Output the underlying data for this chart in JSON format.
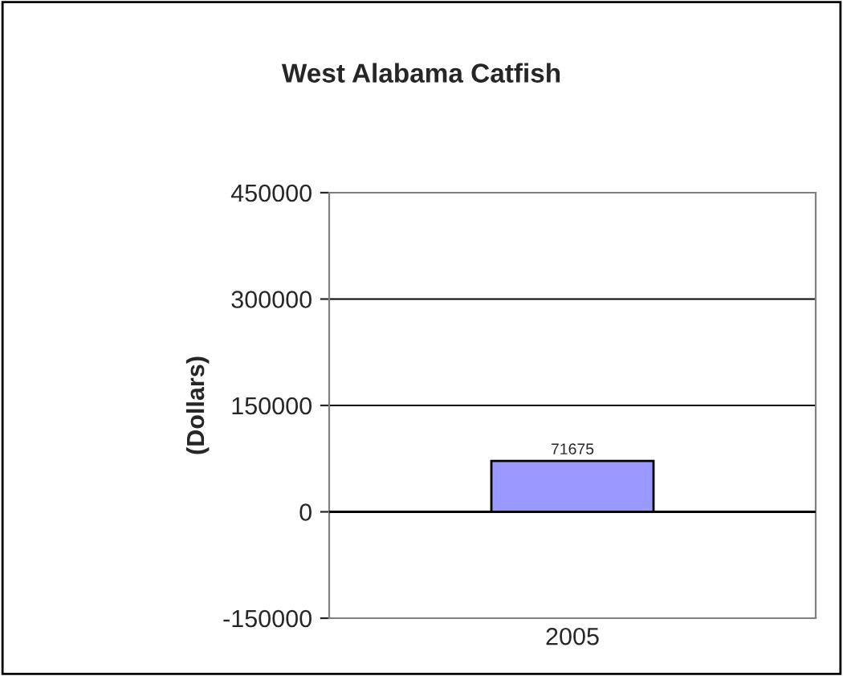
{
  "chart_data": {
    "type": "bar",
    "title": "West Alabama Catfish",
    "ylabel": "(Dollars)",
    "categories": [
      "2005"
    ],
    "values": [
      71675
    ],
    "color": "#9999ff",
    "ylim": [
      -150000,
      450000
    ],
    "yticks": [
      -150000,
      0,
      150000,
      300000,
      450000
    ],
    "grid": "y",
    "data_labels": true
  }
}
